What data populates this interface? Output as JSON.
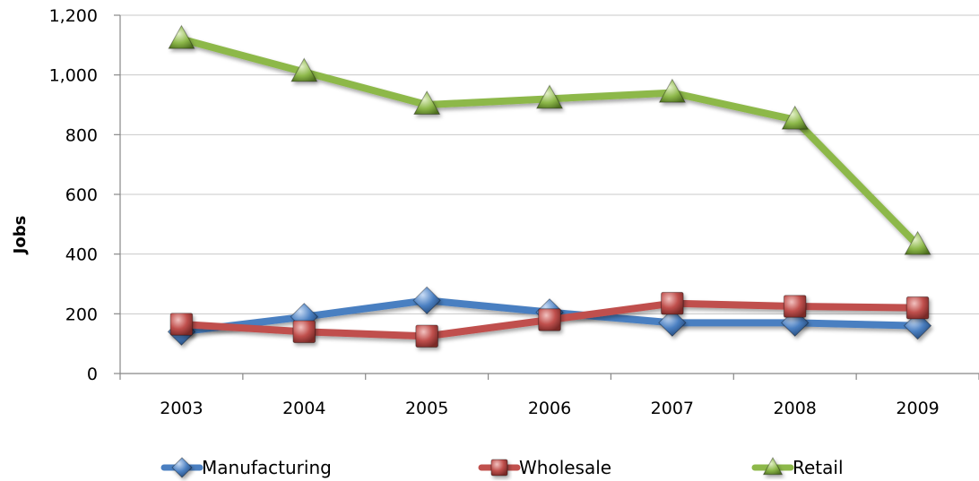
{
  "chart_data": {
    "type": "line",
    "ylabel": "Jobs",
    "xlabel": "",
    "categories": [
      "2003",
      "2004",
      "2005",
      "2006",
      "2007",
      "2008",
      "2009"
    ],
    "ylim": [
      0,
      1200
    ],
    "yticks": [
      0,
      200,
      400,
      600,
      800,
      1000,
      1200
    ],
    "ytick_labels": [
      "0",
      "200",
      "400",
      "600",
      "800",
      "1,000",
      "1,200"
    ],
    "grid": true,
    "legend_position": "bottom",
    "series": [
      {
        "name": "Manufacturing",
        "color": "#4a7fc1",
        "marker": "diamond",
        "values": [
          140,
          190,
          245,
          205,
          170,
          170,
          160
        ]
      },
      {
        "name": "Wholesale",
        "color": "#c0504d",
        "marker": "square",
        "values": [
          165,
          140,
          125,
          180,
          235,
          225,
          220
        ]
      },
      {
        "name": "Retail",
        "color": "#8db84a",
        "marker": "triangle",
        "values": [
          1120,
          1010,
          900,
          920,
          940,
          850,
          430
        ]
      }
    ]
  }
}
